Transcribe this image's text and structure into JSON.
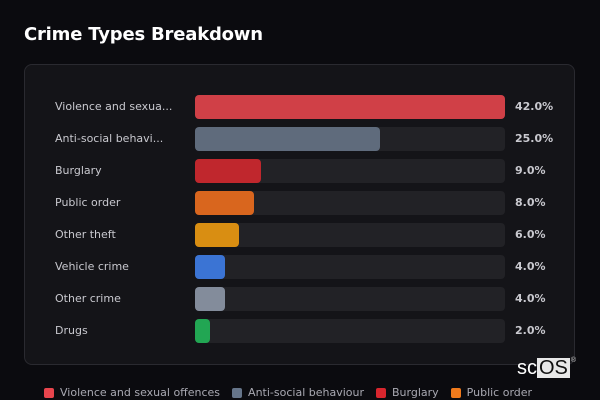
{
  "title": "Crime Types Breakdown",
  "logo": {
    "prefix": "sc",
    "suffix": "OS",
    "mark": "®"
  },
  "chart_data": {
    "type": "bar",
    "orientation": "horizontal",
    "title": "Crime Types Breakdown",
    "categories": [
      "Violence and sexual offences",
      "Anti-social behaviour",
      "Burglary",
      "Public order",
      "Other theft",
      "Vehicle crime",
      "Other crime",
      "Drugs"
    ],
    "display_labels": [
      "Violence and sexua...",
      "Anti-social behavi...",
      "Burglary",
      "Public order",
      "Other theft",
      "Vehicle crime",
      "Other crime",
      "Drugs"
    ],
    "values": [
      42.0,
      25.0,
      9.0,
      8.0,
      6.0,
      4.0,
      4.0,
      2.0
    ],
    "value_labels": [
      "42.0%",
      "25.0%",
      "9.0%",
      "8.0%",
      "6.0%",
      "4.0%",
      "4.0%",
      "2.0%"
    ],
    "colors": [
      "#d04047",
      "#5f6b7c",
      "#c0272d",
      "#d9661e",
      "#d98e12",
      "#3b74d4",
      "#838c9b",
      "#22a653"
    ],
    "xlim": [
      0,
      42
    ],
    "unit": "%",
    "legend": [
      "Violence and sexual offences",
      "Anti-social behaviour",
      "Burglary",
      "Public order"
    ],
    "legend_colors": [
      "#e8454d",
      "#66758a",
      "#d8262e",
      "#f07a1c"
    ],
    "legend_position": "bottom"
  }
}
